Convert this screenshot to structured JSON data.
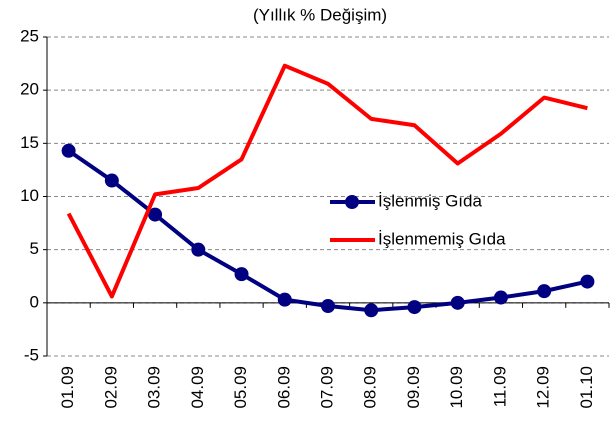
{
  "chart_data": {
    "type": "line",
    "title": "(Yıllık % Değişim)",
    "categories": [
      "01.09",
      "02.09",
      "03.09",
      "04.09",
      "05.09",
      "06.09",
      "07.09",
      "08.09",
      "09.09",
      "10.09",
      "11.09",
      "12.09",
      "01.10"
    ],
    "series": [
      {
        "name": "İşlenmiş Gıda",
        "color": "#000080",
        "values": [
          14.3,
          11.5,
          8.3,
          5.0,
          2.7,
          0.3,
          -0.3,
          -0.7,
          -0.4,
          0.0,
          0.5,
          1.1,
          2.0
        ]
      },
      {
        "name": "İşlenmemiş Gıda",
        "color": "#ff0000",
        "values": [
          8.4,
          0.6,
          10.2,
          10.8,
          13.5,
          22.3,
          20.6,
          17.3,
          16.7,
          13.1,
          15.9,
          19.3,
          18.3
        ]
      }
    ],
    "ylim": [
      -5,
      25
    ],
    "yticks": [
      -5,
      0,
      5,
      10,
      15,
      20,
      25
    ],
    "grid": true
  }
}
